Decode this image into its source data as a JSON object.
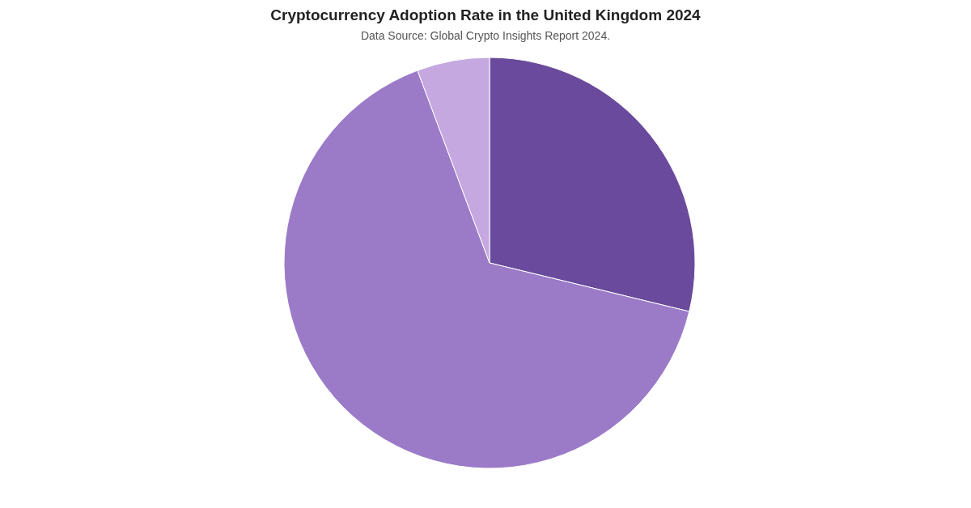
{
  "chart_data": {
    "type": "pie",
    "title": "Cryptocurrency Adoption Rate in the United Kingdom 2024",
    "subtitle": "Data Source: Global Crypto Insights Report 2024.",
    "categories": [
      null,
      null,
      null
    ],
    "values": [
      28.8,
      65.5,
      5.7
    ],
    "colors": [
      "#6a4a9c",
      "#9b7bc8",
      "#c4a8df"
    ],
    "legend": false
  }
}
